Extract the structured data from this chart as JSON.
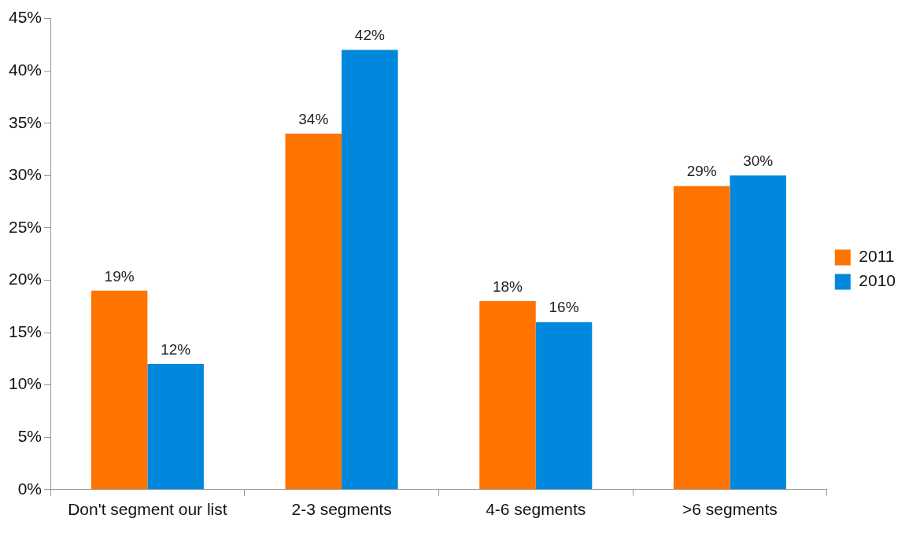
{
  "chart_data": {
    "type": "bar",
    "categories": [
      "Don't segment our list",
      "2-3 segments",
      "4-6 segments",
      ">6 segments"
    ],
    "series": [
      {
        "name": "2011",
        "color": "#ff7300",
        "values": [
          19,
          34,
          18,
          29
        ],
        "value_labels": [
          "19%",
          "34%",
          "18%",
          "29%"
        ]
      },
      {
        "name": "2010",
        "color": "#0088dd",
        "values": [
          12,
          42,
          16,
          30
        ],
        "value_labels": [
          "12%",
          "42%",
          "16%",
          "30%"
        ]
      }
    ],
    "ylim": [
      0,
      45
    ],
    "yticks": [
      {
        "value": 0,
        "label": "0%"
      },
      {
        "value": 5,
        "label": "5%"
      },
      {
        "value": 10,
        "label": "10%"
      },
      {
        "value": 15,
        "label": "15%"
      },
      {
        "value": 20,
        "label": "20%"
      },
      {
        "value": 25,
        "label": "25%"
      },
      {
        "value": 30,
        "label": "30%"
      },
      {
        "value": 35,
        "label": "35%"
      },
      {
        "value": 40,
        "label": "40%"
      },
      {
        "value": 45,
        "label": "45%"
      }
    ],
    "grid": false,
    "legend": "right"
  }
}
